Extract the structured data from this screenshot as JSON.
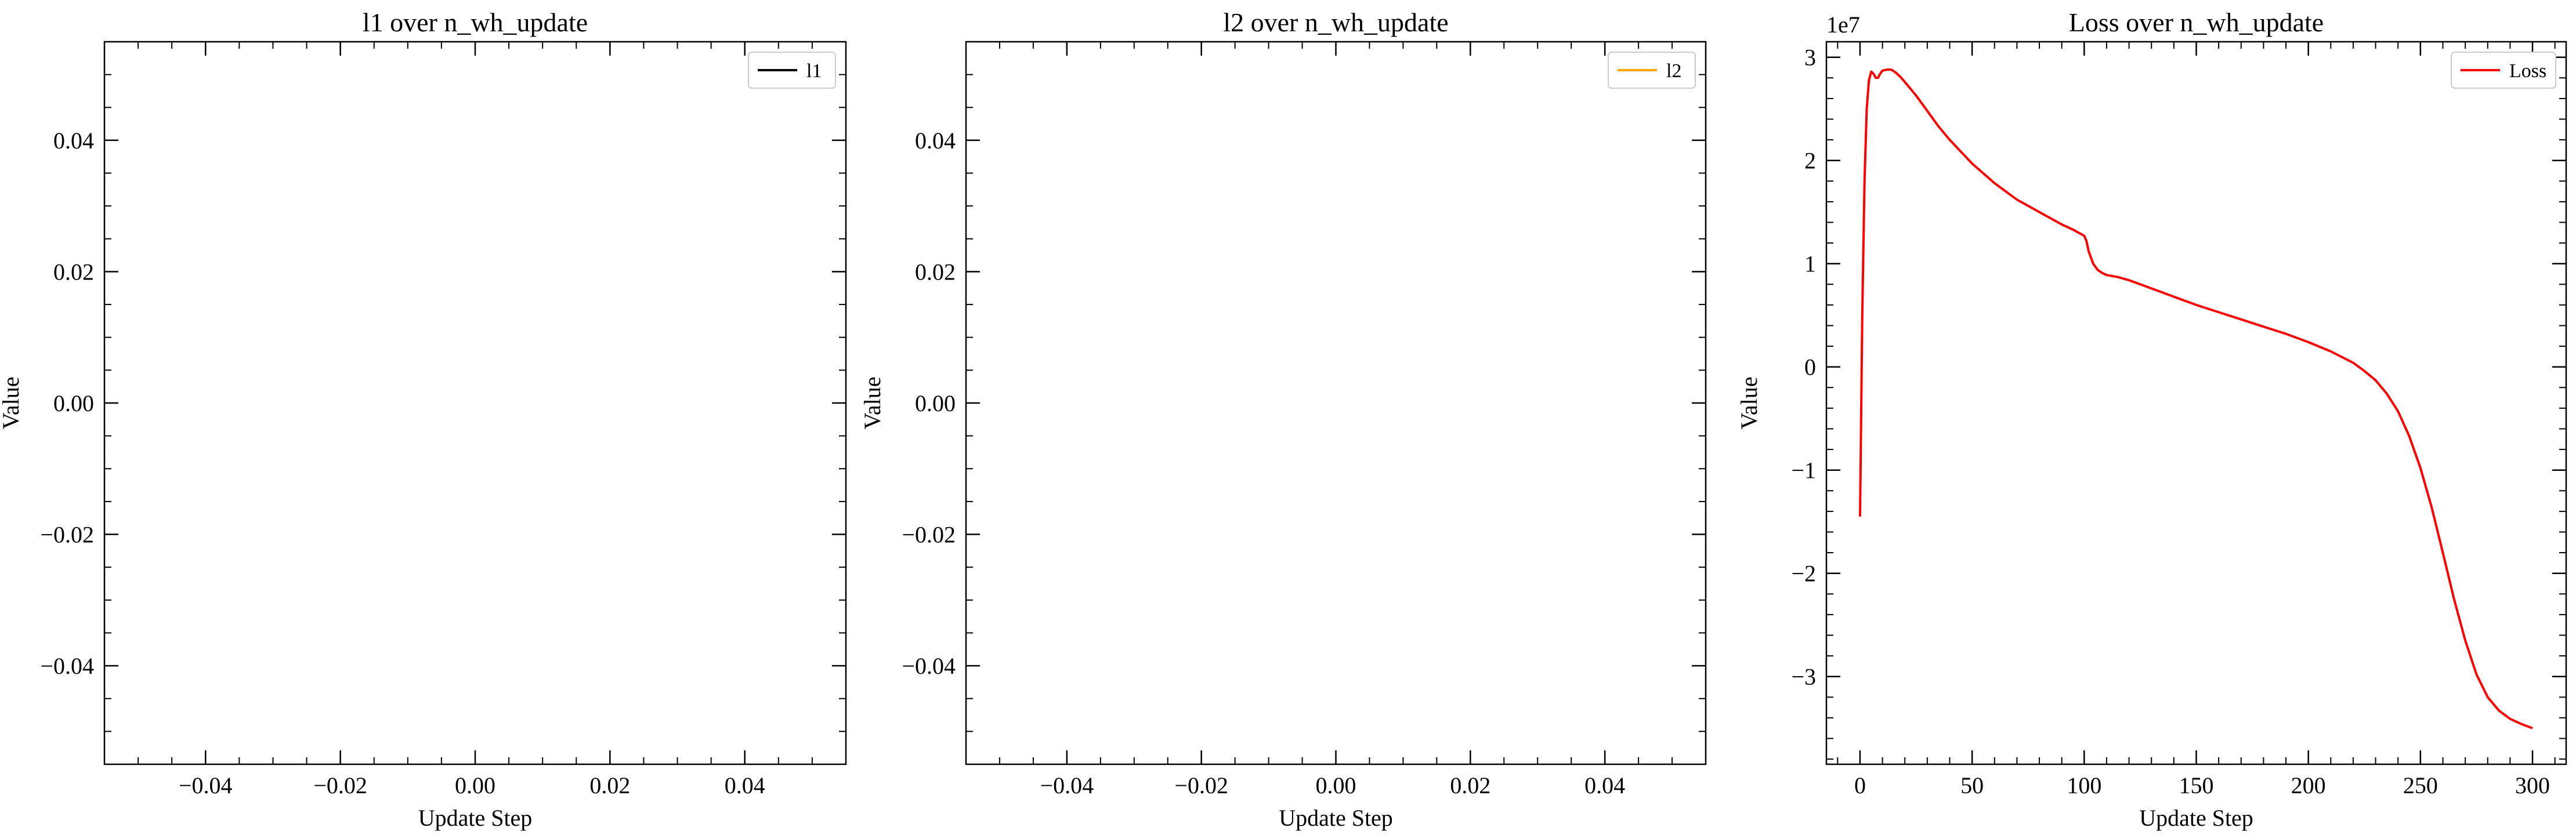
{
  "chart_data": [
    {
      "type": "line",
      "title": "l1 over n_wh_update",
      "xlabel": "Update Step",
      "ylabel": "Value",
      "xlim": [
        -0.055,
        0.055
      ],
      "ylim": [
        -0.055,
        0.055
      ],
      "xticks": [
        -0.04,
        -0.02,
        0.0,
        0.02,
        0.04
      ],
      "xtick_labels": [
        "−0.04",
        "−0.02",
        "0.00",
        "0.02",
        "0.04"
      ],
      "yticks": [
        -0.04,
        -0.02,
        0.0,
        0.02,
        0.04
      ],
      "ytick_labels": [
        "−0.04",
        "−0.02",
        "0.00",
        "0.02",
        "0.04"
      ],
      "minor_step": 0.005,
      "offset_text": "",
      "legend_position": "upper right",
      "series": [
        {
          "name": "l1",
          "color": "#000000",
          "x": [],
          "y": []
        }
      ]
    },
    {
      "type": "line",
      "title": "l2 over n_wh_update",
      "xlabel": "Update Step",
      "ylabel": "Value",
      "xlim": [
        -0.055,
        0.055
      ],
      "ylim": [
        -0.055,
        0.055
      ],
      "xticks": [
        -0.04,
        -0.02,
        0.0,
        0.02,
        0.04
      ],
      "xtick_labels": [
        "−0.04",
        "−0.02",
        "0.00",
        "0.02",
        "0.04"
      ],
      "yticks": [
        -0.04,
        -0.02,
        0.0,
        0.02,
        0.04
      ],
      "ytick_labels": [
        "−0.04",
        "−0.02",
        "0.00",
        "0.02",
        "0.04"
      ],
      "minor_step": 0.005,
      "offset_text": "",
      "legend_position": "upper right",
      "series": [
        {
          "name": "l2",
          "color": "#FFA500",
          "x": [],
          "y": []
        }
      ]
    },
    {
      "type": "line",
      "title": "Loss over n_wh_update",
      "xlabel": "Update Step",
      "ylabel": "Value",
      "xlim": [
        -15,
        315
      ],
      "ylim": [
        -3.85,
        3.15
      ],
      "xticks": [
        0,
        50,
        100,
        150,
        200,
        250,
        300
      ],
      "xtick_labels": [
        "0",
        "50",
        "100",
        "150",
        "200",
        "250",
        "300"
      ],
      "yticks": [
        -3,
        -2,
        -1,
        0,
        1,
        2,
        3
      ],
      "ytick_labels": [
        "−3",
        "−2",
        "−1",
        "0",
        "1",
        "2",
        "3"
      ],
      "minor_step_x": 10,
      "minor_step_y": 0.2,
      "offset_text": "1e7",
      "legend_position": "upper right",
      "series": [
        {
          "name": "Loss",
          "color": "#FF0000",
          "x": [
            0,
            1,
            2,
            3,
            4,
            5,
            6,
            7,
            8,
            9,
            10,
            12,
            14,
            16,
            18,
            20,
            25,
            30,
            35,
            40,
            50,
            60,
            70,
            80,
            90,
            95,
            100,
            101,
            102,
            104,
            106,
            108,
            110,
            115,
            120,
            125,
            130,
            140,
            150,
            160,
            170,
            180,
            190,
            200,
            210,
            220,
            225,
            230,
            235,
            240,
            245,
            250,
            255,
            260,
            265,
            270,
            275,
            280,
            285,
            290,
            295,
            300
          ],
          "y": [
            -1.45,
            0.5,
            1.8,
            2.5,
            2.78,
            2.86,
            2.84,
            2.8,
            2.8,
            2.84,
            2.87,
            2.88,
            2.88,
            2.85,
            2.81,
            2.76,
            2.63,
            2.48,
            2.33,
            2.2,
            1.97,
            1.78,
            1.62,
            1.5,
            1.38,
            1.33,
            1.27,
            1.22,
            1.12,
            1.0,
            0.94,
            0.91,
            0.89,
            0.87,
            0.84,
            0.8,
            0.76,
            0.68,
            0.6,
            0.53,
            0.46,
            0.39,
            0.32,
            0.24,
            0.15,
            0.04,
            -0.04,
            -0.13,
            -0.26,
            -0.43,
            -0.67,
            -0.98,
            -1.36,
            -1.8,
            -2.25,
            -2.65,
            -2.98,
            -3.2,
            -3.33,
            -3.41,
            -3.46,
            -3.5
          ]
        }
      ]
    }
  ]
}
